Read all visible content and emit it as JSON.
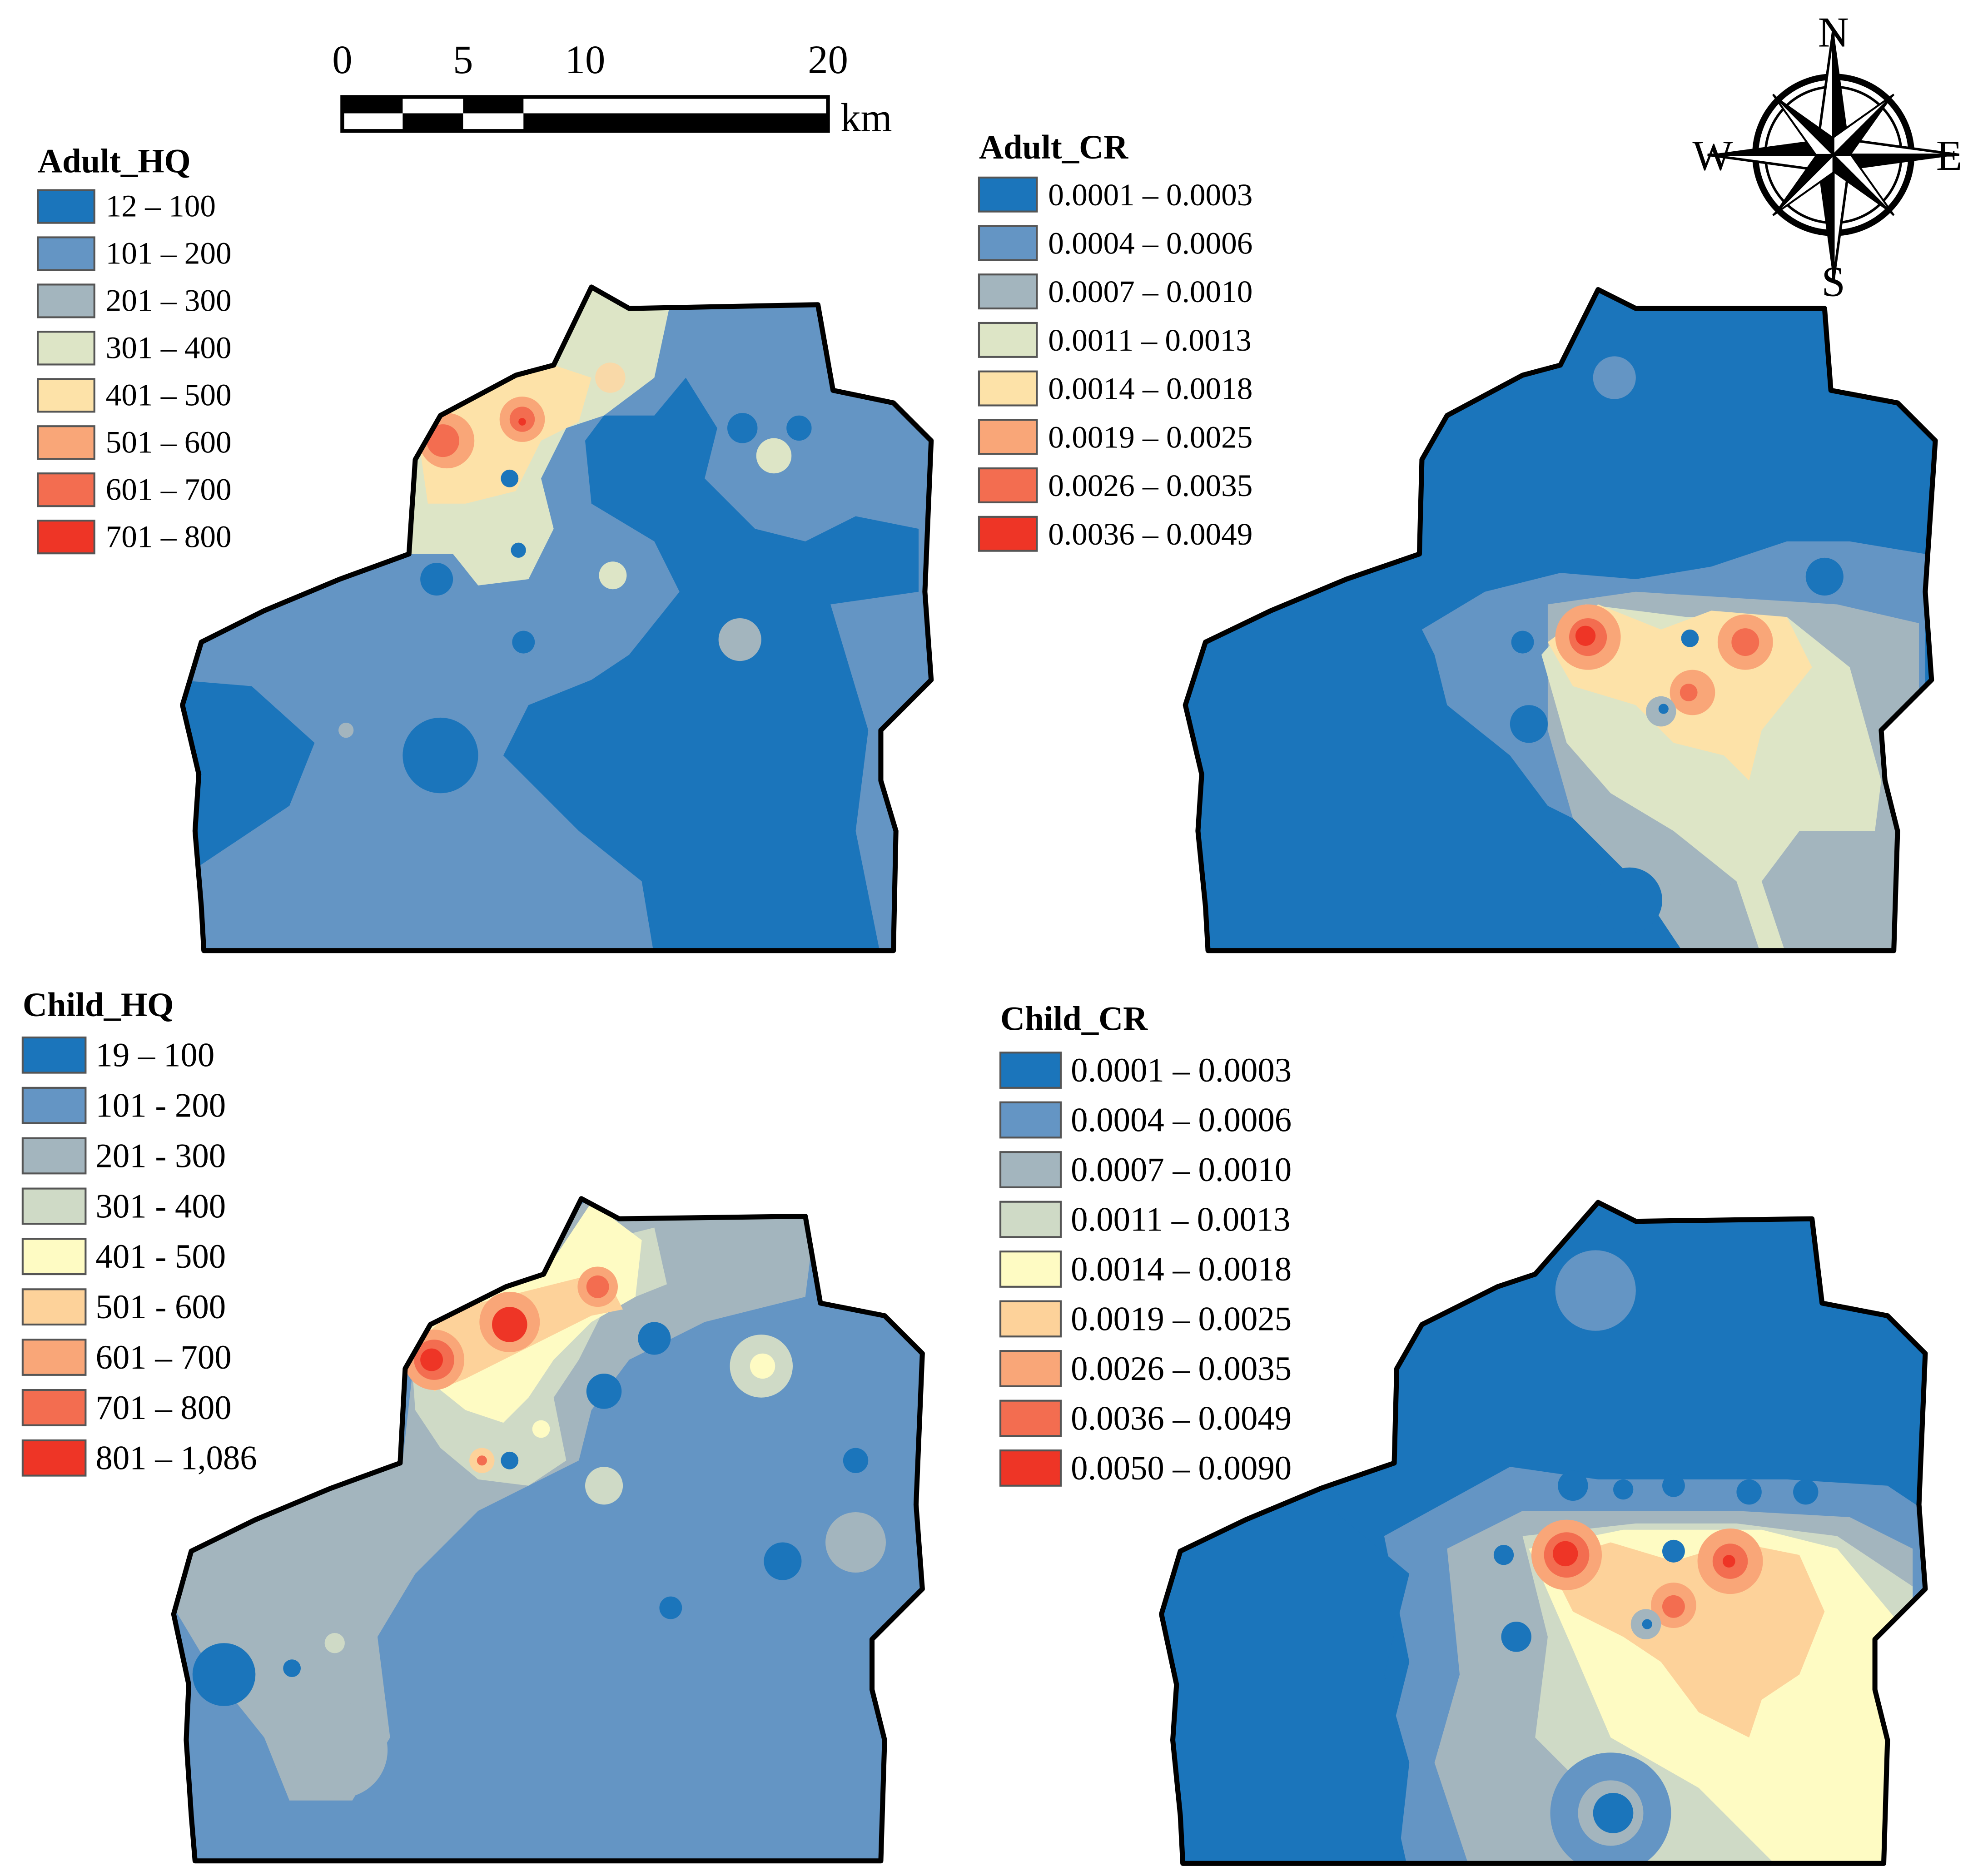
{
  "scale_bar": {
    "ticks": [
      "0",
      "5",
      "10",
      "20"
    ],
    "unit": "km"
  },
  "compass": {
    "n": "N",
    "s": "S",
    "e": "E",
    "w": "W"
  },
  "palettes": {
    "blue5": [
      "#1b75bb",
      "#6495c4",
      "#a3b5be",
      "#dde5c6",
      "#fde2a8",
      "#f9a678",
      "#f36d50",
      "#ee3526"
    ],
    "blue9": [
      "#1b75bb",
      "#6495c4",
      "#a3b5be",
      "#cfdac6",
      "#fefbc3",
      "#fdd29a",
      "#f9a678",
      "#f36d50",
      "#ee3526"
    ]
  },
  "panels": {
    "adult_hq": {
      "title": "Adult_HQ",
      "classes": [
        "12 – 100",
        "101 – 200",
        "201 – 300",
        "301 – 400",
        "401 – 500",
        "501 – 600",
        "601 – 700",
        "701 – 800"
      ],
      "colors": [
        "#1b75bb",
        "#6495c4",
        "#a3b5be",
        "#dde5c6",
        "#fde2a8",
        "#f9a678",
        "#f36d50",
        "#ee3526"
      ]
    },
    "adult_cr": {
      "title": "Adult_CR",
      "classes": [
        "0.0001 – 0.0003",
        "0.0004 – 0.0006",
        "0.0007 – 0.0010",
        "0.0011 – 0.0013",
        "0.0014 – 0.0018",
        "0.0019 – 0.0025",
        "0.0026 – 0.0035",
        "0.0036 – 0.0049"
      ],
      "colors": [
        "#1b75bb",
        "#6495c4",
        "#a3b5be",
        "#dde5c6",
        "#fde2a8",
        "#f9a678",
        "#f36d50",
        "#ee3526"
      ]
    },
    "child_hq": {
      "title": "Child_HQ",
      "classes": [
        "19 – 100",
        "101 - 200",
        "201 - 300",
        "301 - 400",
        "401 - 500",
        "501 - 600",
        "601 – 700",
        "701 – 800",
        "801 – 1,086"
      ],
      "colors": [
        "#1b75bb",
        "#6495c4",
        "#a3b5be",
        "#cfdac6",
        "#fefbc3",
        "#fdd29a",
        "#f9a678",
        "#f36d50",
        "#ee3526"
      ]
    },
    "child_cr": {
      "title": "Child_CR",
      "classes": [
        "0.0001 – 0.0003",
        "0.0004 – 0.0006",
        "0.0007 – 0.0010",
        "0.0011 – 0.0013",
        "0.0014 – 0.0018",
        "0.0019 – 0.0025",
        "0.0026 – 0.0035",
        "0.0036 – 0.0049",
        "0.0050 – 0.0090"
      ],
      "colors": [
        "#1b75bb",
        "#6495c4",
        "#a3b5be",
        "#cfdac6",
        "#fefbc3",
        "#fdd29a",
        "#f9a678",
        "#f36d50",
        "#ee3526"
      ]
    }
  }
}
